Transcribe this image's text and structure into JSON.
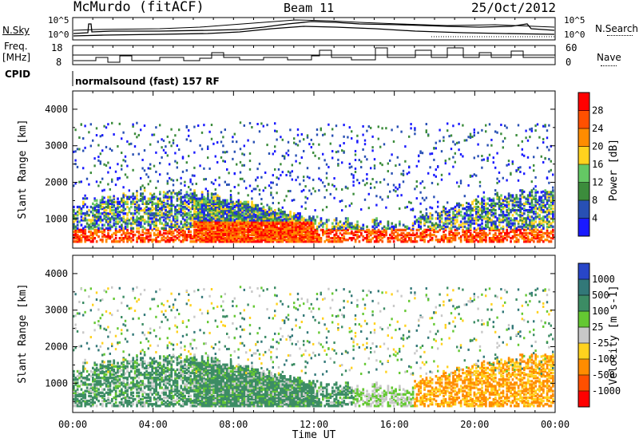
{
  "header": {
    "station": "McMurdo (fitACF)",
    "beam": "Beam 11",
    "date": "25/Oct/2012"
  },
  "top_panels": {
    "nsky_label": "N.Sky",
    "nsearch_label": "N.Search",
    "noise_ticks": [
      "10^5",
      "10^0"
    ],
    "freq_label": "Freq.",
    "freq_unit": "[MHz]",
    "freq_ticks": [
      "18",
      "8"
    ],
    "nave_ticks": [
      "60",
      "0"
    ],
    "nave_label": "Nave",
    "cpid_label": "CPID",
    "cpid_text": "normalsound (fast) 157 RF"
  },
  "colors": {
    "power_scale": [
      "#1a1aff",
      "#2850b4",
      "#3c8c3c",
      "#64c864",
      "#ffd21e",
      "#ff8c00",
      "#ff5000",
      "#ff0000"
    ],
    "velocity_scale": [
      "#2846c8",
      "#327878",
      "#3c8c64",
      "#64c832",
      "#c8c8c8",
      "#ffd21e",
      "#ff8c00",
      "#ff5000",
      "#ff0000"
    ]
  },
  "chart_data": [
    {
      "type": "heatmap",
      "name": "power",
      "ylabel": "Slant Range [km]",
      "yticks": [
        1000,
        2000,
        3000,
        4000
      ],
      "ylim": [
        200,
        4500
      ],
      "xlim": [
        0,
        24
      ],
      "colorbar": {
        "label": "Power [dB]",
        "ticks": [
          "4",
          "8",
          "12",
          "16",
          "20",
          "24",
          "28"
        ],
        "range": [
          0,
          32
        ]
      }
    },
    {
      "type": "heatmap",
      "name": "velocity",
      "xlabel": "Time UT",
      "ylabel": "Slant Range [km]",
      "xticks": [
        "00:00",
        "04:00",
        "08:00",
        "12:00",
        "16:00",
        "20:00",
        "00:00"
      ],
      "yticks": [
        1000,
        2000,
        3000,
        4000
      ],
      "ylim": [
        200,
        4500
      ],
      "xlim": [
        0,
        24
      ],
      "colorbar": {
        "label": "Velocity [m s-1]",
        "ticks": [
          "1000",
          "500",
          "100",
          "25",
          "-25",
          "-100",
          "-500",
          "-1000"
        ]
      }
    }
  ]
}
